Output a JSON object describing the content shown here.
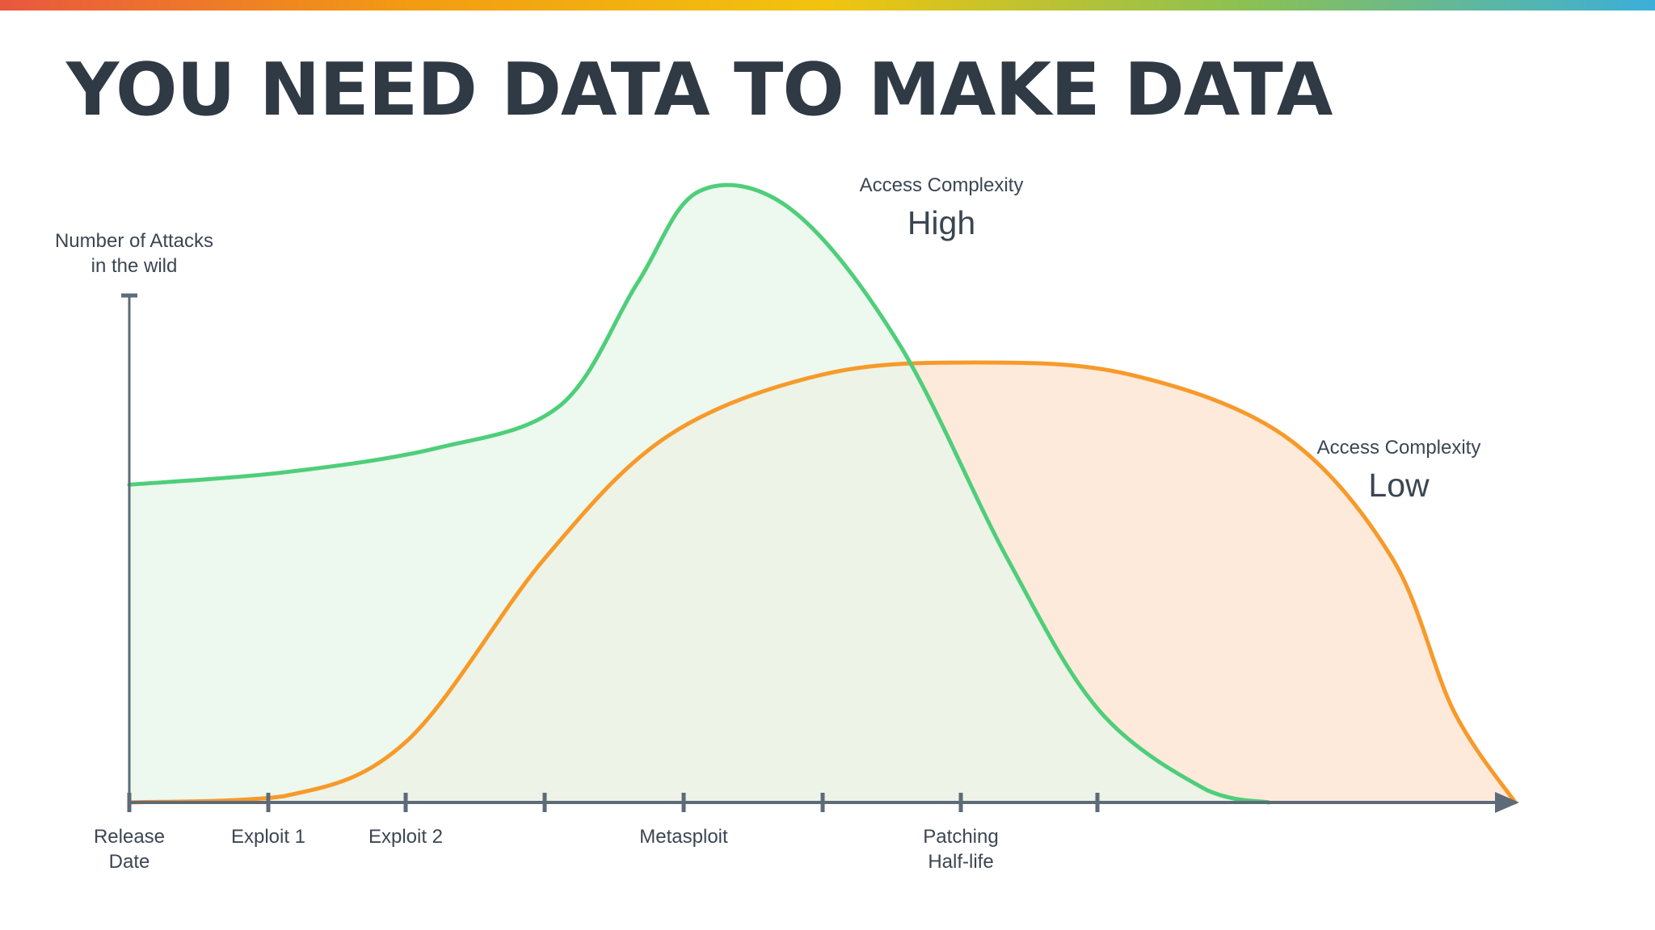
{
  "slide": {
    "title": "YOU NEED DATA TO MAKE DATA",
    "top_bar_colors": [
      "#e9573f",
      "#f39c12",
      "#f1c40f",
      "#8cc152",
      "#3bafda"
    ],
    "title_color": "#2f3a45"
  },
  "chart_data": {
    "type": "area",
    "ylabel": [
      "Number of Attacks",
      "in the wild"
    ],
    "x_ticks": [
      {
        "label": [
          "Release",
          "Date"
        ]
      },
      {
        "label": [
          "Exploit 1"
        ]
      },
      {
        "label": [
          "Exploit 2"
        ]
      },
      {
        "label": []
      },
      {
        "label": [
          "Metasploit"
        ]
      },
      {
        "label": []
      },
      {
        "label": [
          "Patching",
          "Half-life"
        ]
      },
      {
        "label": []
      }
    ],
    "series": [
      {
        "name_small": "Access Complexity",
        "name_large": "High",
        "color": "#4fce7a",
        "fill": "#e7f6ea",
        "points": [
          [
            0,
            0.52
          ],
          [
            1,
            0.54
          ],
          [
            2,
            0.58
          ],
          [
            2.8,
            0.65
          ],
          [
            3.3,
            0.85
          ],
          [
            3.7,
            1.0
          ],
          [
            4.3,
            0.97
          ],
          [
            5.0,
            0.75
          ],
          [
            5.7,
            0.4
          ],
          [
            6.3,
            0.15
          ],
          [
            7.0,
            0.02
          ],
          [
            7.4,
            0.0
          ]
        ]
      },
      {
        "name_small": "Access Complexity",
        "name_large": "Low",
        "color": "#f79a2a",
        "fill": "#feeadb",
        "points": [
          [
            0,
            0.0
          ],
          [
            1,
            0.01
          ],
          [
            1.8,
            0.1
          ],
          [
            2.7,
            0.4
          ],
          [
            3.5,
            0.6
          ],
          [
            4.5,
            0.7
          ],
          [
            5.5,
            0.72
          ],
          [
            6.5,
            0.7
          ],
          [
            7.5,
            0.6
          ],
          [
            8.2,
            0.4
          ],
          [
            8.6,
            0.15
          ],
          [
            9.0,
            0.0
          ]
        ]
      }
    ],
    "x_range": [
      0,
      9
    ],
    "y_range": [
      0,
      1
    ],
    "axis_color": "#5d6b78"
  }
}
